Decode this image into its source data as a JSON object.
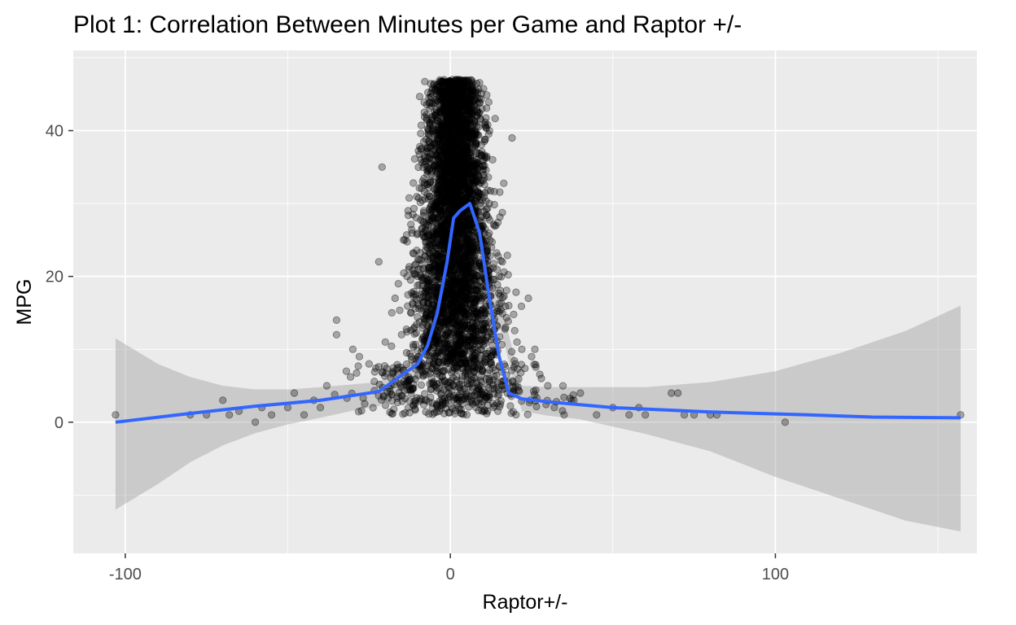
{
  "chart_data": {
    "type": "scatter",
    "title": "Plot 1: Correlation Between Minutes per Game and Raptor +/-",
    "xlabel": "Raptor+/-",
    "ylabel": "MPG",
    "xlim": [
      -116,
      162
    ],
    "ylim": [
      -18,
      51
    ],
    "x_ticks": [
      -100,
      0,
      100
    ],
    "x_tick_labels": [
      "-100",
      "0",
      "100"
    ],
    "y_ticks": [
      0,
      20,
      40
    ],
    "y_tick_labels": [
      "0",
      "20",
      "40"
    ],
    "grid": true,
    "legend": "none",
    "colors": {
      "panel": "#ebebeb",
      "grid_major": "#ffffff",
      "points": "#000000",
      "smooth_line": "#3366ff",
      "confidence_band": "#999999"
    },
    "point_alpha": 0.3,
    "dense_core": {
      "description_x_center": 0,
      "x_spread": 6,
      "y_range": [
        0,
        47
      ]
    },
    "outlier_points": [
      {
        "x": -103,
        "y": 1
      },
      {
        "x": -80,
        "y": 1
      },
      {
        "x": -75,
        "y": 1
      },
      {
        "x": -70,
        "y": 3
      },
      {
        "x": -68,
        "y": 1
      },
      {
        "x": -65,
        "y": 1.5
      },
      {
        "x": -60,
        "y": 0
      },
      {
        "x": -58,
        "y": 2
      },
      {
        "x": -55,
        "y": 1
      },
      {
        "x": -50,
        "y": 2
      },
      {
        "x": -48,
        "y": 4
      },
      {
        "x": -45,
        "y": 1
      },
      {
        "x": -42,
        "y": 3
      },
      {
        "x": -40,
        "y": 2
      },
      {
        "x": -38,
        "y": 5
      },
      {
        "x": -35,
        "y": 14
      },
      {
        "x": -35,
        "y": 12
      },
      {
        "x": -32,
        "y": 7
      },
      {
        "x": -30,
        "y": 10
      },
      {
        "x": -28,
        "y": 9
      },
      {
        "x": -25,
        "y": 8
      },
      {
        "x": -22,
        "y": 22
      },
      {
        "x": -21,
        "y": 35
      },
      {
        "x": -20,
        "y": 11
      },
      {
        "x": -18,
        "y": 15
      },
      {
        "x": -17,
        "y": 17
      },
      {
        "x": -16,
        "y": 19
      },
      {
        "x": -15,
        "y": 12
      },
      {
        "x": -14,
        "y": 25
      },
      {
        "x": -13,
        "y": 29
      },
      {
        "x": 12,
        "y": 30
      },
      {
        "x": 13,
        "y": 36
      },
      {
        "x": 14,
        "y": 27
      },
      {
        "x": 15,
        "y": 20
      },
      {
        "x": 16,
        "y": 22
      },
      {
        "x": 17,
        "y": 13
      },
      {
        "x": 18,
        "y": 16
      },
      {
        "x": 19,
        "y": 39
      },
      {
        "x": 20,
        "y": 8
      },
      {
        "x": 22,
        "y": 10
      },
      {
        "x": 24,
        "y": 17
      },
      {
        "x": 25,
        "y": 9
      },
      {
        "x": 26,
        "y": 10
      },
      {
        "x": 28,
        "y": 6
      },
      {
        "x": 30,
        "y": 5
      },
      {
        "x": 32,
        "y": 2
      },
      {
        "x": 35,
        "y": 1
      },
      {
        "x": 38,
        "y": 3
      },
      {
        "x": 40,
        "y": 4
      },
      {
        "x": 45,
        "y": 1
      },
      {
        "x": 50,
        "y": 2
      },
      {
        "x": 55,
        "y": 1
      },
      {
        "x": 58,
        "y": 2
      },
      {
        "x": 60,
        "y": 1
      },
      {
        "x": 68,
        "y": 4
      },
      {
        "x": 70,
        "y": 4
      },
      {
        "x": 72,
        "y": 1
      },
      {
        "x": 75,
        "y": 1
      },
      {
        "x": 80,
        "y": 1
      },
      {
        "x": 82,
        "y": 1
      },
      {
        "x": 103,
        "y": 0
      },
      {
        "x": 157,
        "y": 1
      }
    ],
    "smooth_line": {
      "x": [
        -103,
        -80,
        -60,
        -40,
        -22,
        -10,
        -7,
        -4,
        -1,
        1,
        3,
        6,
        9,
        12,
        15,
        18,
        22,
        30,
        50,
        80,
        110,
        130,
        157
      ],
      "y": [
        0,
        1.2,
        2.2,
        3.0,
        4.2,
        8,
        10.5,
        15,
        22,
        28,
        29,
        30,
        26,
        17,
        9,
        4,
        3.2,
        2.8,
        2.0,
        1.4,
        1.0,
        0.7,
        0.6
      ]
    },
    "confidence_band": {
      "x": [
        -103,
        -90,
        -80,
        -70,
        -60,
        -50,
        -40,
        -30,
        -22,
        -10,
        0,
        10,
        22,
        30,
        40,
        50,
        60,
        80,
        100,
        120,
        140,
        157
      ],
      "upper": [
        11.5,
        8.0,
        6.2,
        5.0,
        4.5,
        4.5,
        4.8,
        5.2,
        5.5,
        9,
        30,
        26,
        5,
        4.8,
        4.8,
        4.8,
        4.8,
        5.5,
        7.0,
        9.5,
        12.5,
        16
      ],
      "lower": [
        -12,
        -8.5,
        -5.5,
        -3.2,
        -1.5,
        -0.3,
        0.6,
        1.6,
        2.2,
        6,
        26,
        22,
        1.5,
        0.9,
        0.4,
        -0.6,
        -1.6,
        -4.0,
        -7.5,
        -10.5,
        -13.5,
        -15
      ]
    }
  }
}
